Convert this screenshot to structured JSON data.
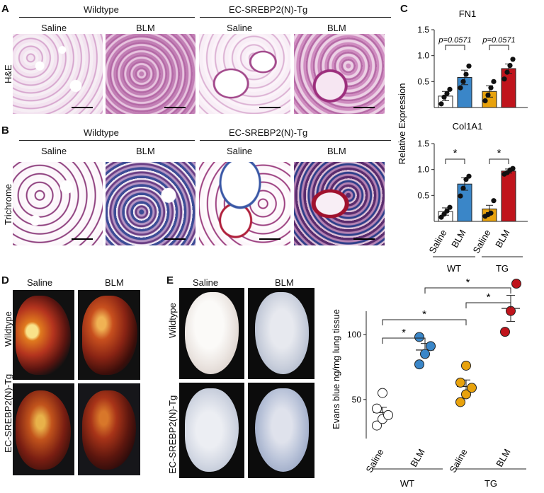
{
  "panelA": {
    "letter": "A",
    "groups": [
      "Wildtype",
      "EC-SREBP2(N)-Tg"
    ],
    "conditions": [
      "Saline",
      "BLM",
      "Saline",
      "BLM"
    ],
    "row_label": "H&E"
  },
  "panelB": {
    "letter": "B",
    "groups": [
      "Wildtype",
      "EC-SREBP2(N)-Tg"
    ],
    "conditions": [
      "Saline",
      "BLM",
      "Saline",
      "BLM"
    ],
    "row_label": "Trichrome"
  },
  "panelC": {
    "letter": "C",
    "ylabel": "Relative Expression",
    "x_categories": [
      "Saline",
      "BLM",
      "Saline",
      "BLM"
    ],
    "group_labels": [
      "WT",
      "TG"
    ]
  },
  "panelD": {
    "letter": "D",
    "columns": [
      "Saline",
      "BLM"
    ],
    "rows": [
      "Wildtype",
      "EC-SREBP2(N)-Tg"
    ]
  },
  "panelE": {
    "letter": "E",
    "columns": [
      "Saline",
      "BLM"
    ],
    "rows": [
      "Wildtype",
      "EC-SREBP2(N)-Tg"
    ]
  },
  "chart_data": [
    {
      "type": "bar",
      "title": "FN1",
      "ylabel": "Relative Expression",
      "categories": [
        "Saline",
        "BLM",
        "Saline",
        "BLM"
      ],
      "groups": [
        "WT",
        "WT",
        "TG",
        "TG"
      ],
      "values": [
        0.22,
        0.58,
        0.31,
        0.75
      ],
      "errors": [
        0.09,
        0.14,
        0.11,
        0.09
      ],
      "points": [
        [
          0.07,
          0.2,
          0.27,
          0.35
        ],
        [
          0.38,
          0.5,
          0.64,
          0.8
        ],
        [
          0.13,
          0.24,
          0.38,
          0.5
        ],
        [
          0.55,
          0.68,
          0.81,
          0.93
        ]
      ],
      "colors": [
        "#ffffff",
        "#3a86c8",
        "#e8a20c",
        "#c0141c"
      ],
      "ylim": [
        0,
        1.5
      ],
      "yticks": [
        0.5,
        1.0,
        1.5
      ],
      "annotations": [
        {
          "between": [
            0,
            1
          ],
          "text": "p=0.0571"
        },
        {
          "between": [
            2,
            3
          ],
          "text": "p=0.0571"
        }
      ]
    },
    {
      "type": "bar",
      "title": "Col1A1",
      "ylabel": "Relative Expression",
      "categories": [
        "Saline",
        "BLM",
        "Saline",
        "BLM"
      ],
      "groups": [
        "WT",
        "WT",
        "TG",
        "TG"
      ],
      "values": [
        0.19,
        0.72,
        0.24,
        0.97
      ],
      "errors": [
        0.07,
        0.12,
        0.07,
        0.04
      ],
      "points": [
        [
          0.08,
          0.14,
          0.2,
          0.27
        ],
        [
          0.49,
          0.64,
          0.81,
          0.87
        ],
        [
          0.1,
          0.13,
          0.16,
          0.4
        ],
        [
          0.91,
          0.94,
          0.99,
          1.02
        ]
      ],
      "colors": [
        "#ffffff",
        "#3a86c8",
        "#e8a20c",
        "#c0141c"
      ],
      "ylim": [
        0,
        1.5
      ],
      "yticks": [
        0.5,
        1.0,
        1.5
      ],
      "annotations": [
        {
          "between": [
            0,
            1
          ],
          "text": "*"
        },
        {
          "between": [
            2,
            3
          ],
          "text": "*"
        }
      ]
    },
    {
      "type": "scatter",
      "title": "",
      "ylabel": "Evans blue ng/mg lung tissue",
      "categories": [
        "Saline",
        "BLM",
        "Saline",
        "BLM"
      ],
      "groups": [
        "WT",
        "WT",
        "TG",
        "TG"
      ],
      "means": [
        40,
        88,
        60,
        120
      ],
      "errors": [
        4,
        5,
        5,
        10
      ],
      "points": [
        [
          30,
          35,
          38,
          43,
          55
        ],
        [
          77,
          85,
          91,
          98
        ],
        [
          48,
          54,
          59,
          63,
          76
        ],
        [
          102,
          118,
          139
        ]
      ],
      "colors": [
        "#ffffff",
        "#3a86c8",
        "#e8a20c",
        "#c0141c"
      ],
      "ylim": [
        20,
        145
      ],
      "yticks": [
        50,
        100
      ],
      "annotations": [
        {
          "between": [
            0,
            1
          ],
          "text": "*"
        },
        {
          "between": [
            0,
            2
          ],
          "text": "*"
        },
        {
          "between": [
            2,
            3
          ],
          "text": "*"
        },
        {
          "between": [
            1,
            3
          ],
          "text": "*"
        }
      ]
    }
  ]
}
